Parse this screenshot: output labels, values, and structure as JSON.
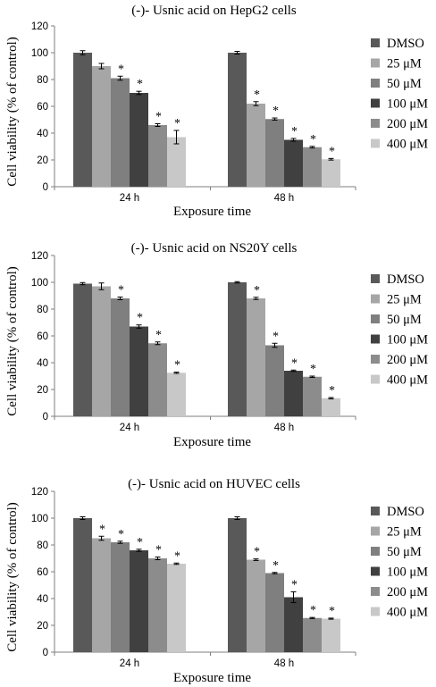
{
  "chart_data": [
    {
      "type": "bar",
      "title": "(-)- Usnic acid on HepG2 cells",
      "xlabel": "Exposure time",
      "ylabel": "Cell viability (% of control)",
      "categories": [
        "24 h",
        "48 h"
      ],
      "ylim": [
        0,
        120
      ],
      "yticks": [
        "0",
        "20",
        "40",
        "60",
        "80",
        "100",
        "120"
      ],
      "grid": false,
      "legend": "right",
      "significance_marker": "*",
      "series": [
        {
          "name": "DMSO",
          "color": "#595959",
          "values": [
            100,
            100
          ],
          "errors": [
            1.5,
            1
          ],
          "significant": [
            false,
            false
          ]
        },
        {
          "name": "25 μM",
          "color": "#a6a6a6",
          "values": [
            90,
            62
          ],
          "errors": [
            2,
            1.5
          ],
          "significant": [
            false,
            true
          ]
        },
        {
          "name": "50 μM",
          "color": "#7f7f7f",
          "values": [
            81,
            50.5
          ],
          "errors": [
            1.5,
            0.8
          ],
          "significant": [
            true,
            true
          ]
        },
        {
          "name": "100 μM",
          "color": "#404040",
          "values": [
            70,
            35
          ],
          "errors": [
            1.2,
            1
          ],
          "significant": [
            true,
            true
          ]
        },
        {
          "name": "200 μM",
          "color": "#8c8c8c",
          "values": [
            46,
            29.5
          ],
          "errors": [
            1,
            0.6
          ],
          "significant": [
            true,
            true
          ]
        },
        {
          "name": "400 μM",
          "color": "#c8c8c8",
          "values": [
            37,
            20.5
          ],
          "errors": [
            5,
            0.6
          ],
          "significant": [
            true,
            true
          ]
        }
      ]
    },
    {
      "type": "bar",
      "title": "(-)- Usnic acid on NS20Y cells",
      "xlabel": "Exposure time",
      "ylabel": "Cell viability (% of control)",
      "categories": [
        "24 h",
        "48 h"
      ],
      "ylim": [
        0,
        120
      ],
      "yticks": [
        "0",
        "20",
        "40",
        "60",
        "80",
        "100",
        "120"
      ],
      "grid": false,
      "legend": "right",
      "significance_marker": "*",
      "series": [
        {
          "name": "DMSO",
          "color": "#595959",
          "values": [
            99,
            100
          ],
          "errors": [
            0.8,
            0.5
          ],
          "significant": [
            false,
            false
          ]
        },
        {
          "name": "25 μM",
          "color": "#a6a6a6",
          "values": [
            97,
            88
          ],
          "errors": [
            2.5,
            0.8
          ],
          "significant": [
            false,
            true
          ]
        },
        {
          "name": "50 μM",
          "color": "#7f7f7f",
          "values": [
            88,
            53
          ],
          "errors": [
            1,
            1.5
          ],
          "significant": [
            true,
            true
          ]
        },
        {
          "name": "100 μM",
          "color": "#404040",
          "values": [
            67,
            34
          ],
          "errors": [
            1.2,
            0.5
          ],
          "significant": [
            true,
            true
          ]
        },
        {
          "name": "200 μM",
          "color": "#8c8c8c",
          "values": [
            54.5,
            29.5
          ],
          "errors": [
            1,
            0.5
          ],
          "significant": [
            true,
            true
          ]
        },
        {
          "name": "400 μM",
          "color": "#c8c8c8",
          "values": [
            32.5,
            13.5
          ],
          "errors": [
            0.5,
            0.5
          ],
          "significant": [
            true,
            true
          ]
        }
      ]
    },
    {
      "type": "bar",
      "title": "(-)- Usnic acid on HUVEC cells",
      "xlabel": "Exposure time",
      "ylabel": "Cell viability (% of control)",
      "categories": [
        "24 h",
        "48 h"
      ],
      "ylim": [
        0,
        120
      ],
      "yticks": [
        "0",
        "20",
        "40",
        "60",
        "80",
        "100",
        "120"
      ],
      "grid": false,
      "legend": "right",
      "significance_marker": "*",
      "series": [
        {
          "name": "DMSO",
          "color": "#595959",
          "values": [
            100,
            100
          ],
          "errors": [
            1,
            1
          ],
          "significant": [
            false,
            false
          ]
        },
        {
          "name": "25 μM",
          "color": "#a6a6a6",
          "values": [
            85,
            69
          ],
          "errors": [
            1.5,
            0.6
          ],
          "significant": [
            true,
            true
          ]
        },
        {
          "name": "50 μM",
          "color": "#7f7f7f",
          "values": [
            82,
            59
          ],
          "errors": [
            0.8,
            0.5
          ],
          "significant": [
            true,
            true
          ]
        },
        {
          "name": "100 μM",
          "color": "#404040",
          "values": [
            76,
            41
          ],
          "errors": [
            0.8,
            4
          ],
          "significant": [
            true,
            true
          ]
        },
        {
          "name": "200 μM",
          "color": "#8c8c8c",
          "values": [
            70,
            25.5
          ],
          "errors": [
            1,
            0.4
          ],
          "significant": [
            true,
            true
          ]
        },
        {
          "name": "400 μM",
          "color": "#c8c8c8",
          "values": [
            66,
            25
          ],
          "errors": [
            0.5,
            0.4
          ],
          "significant": [
            true,
            true
          ]
        }
      ]
    }
  ]
}
